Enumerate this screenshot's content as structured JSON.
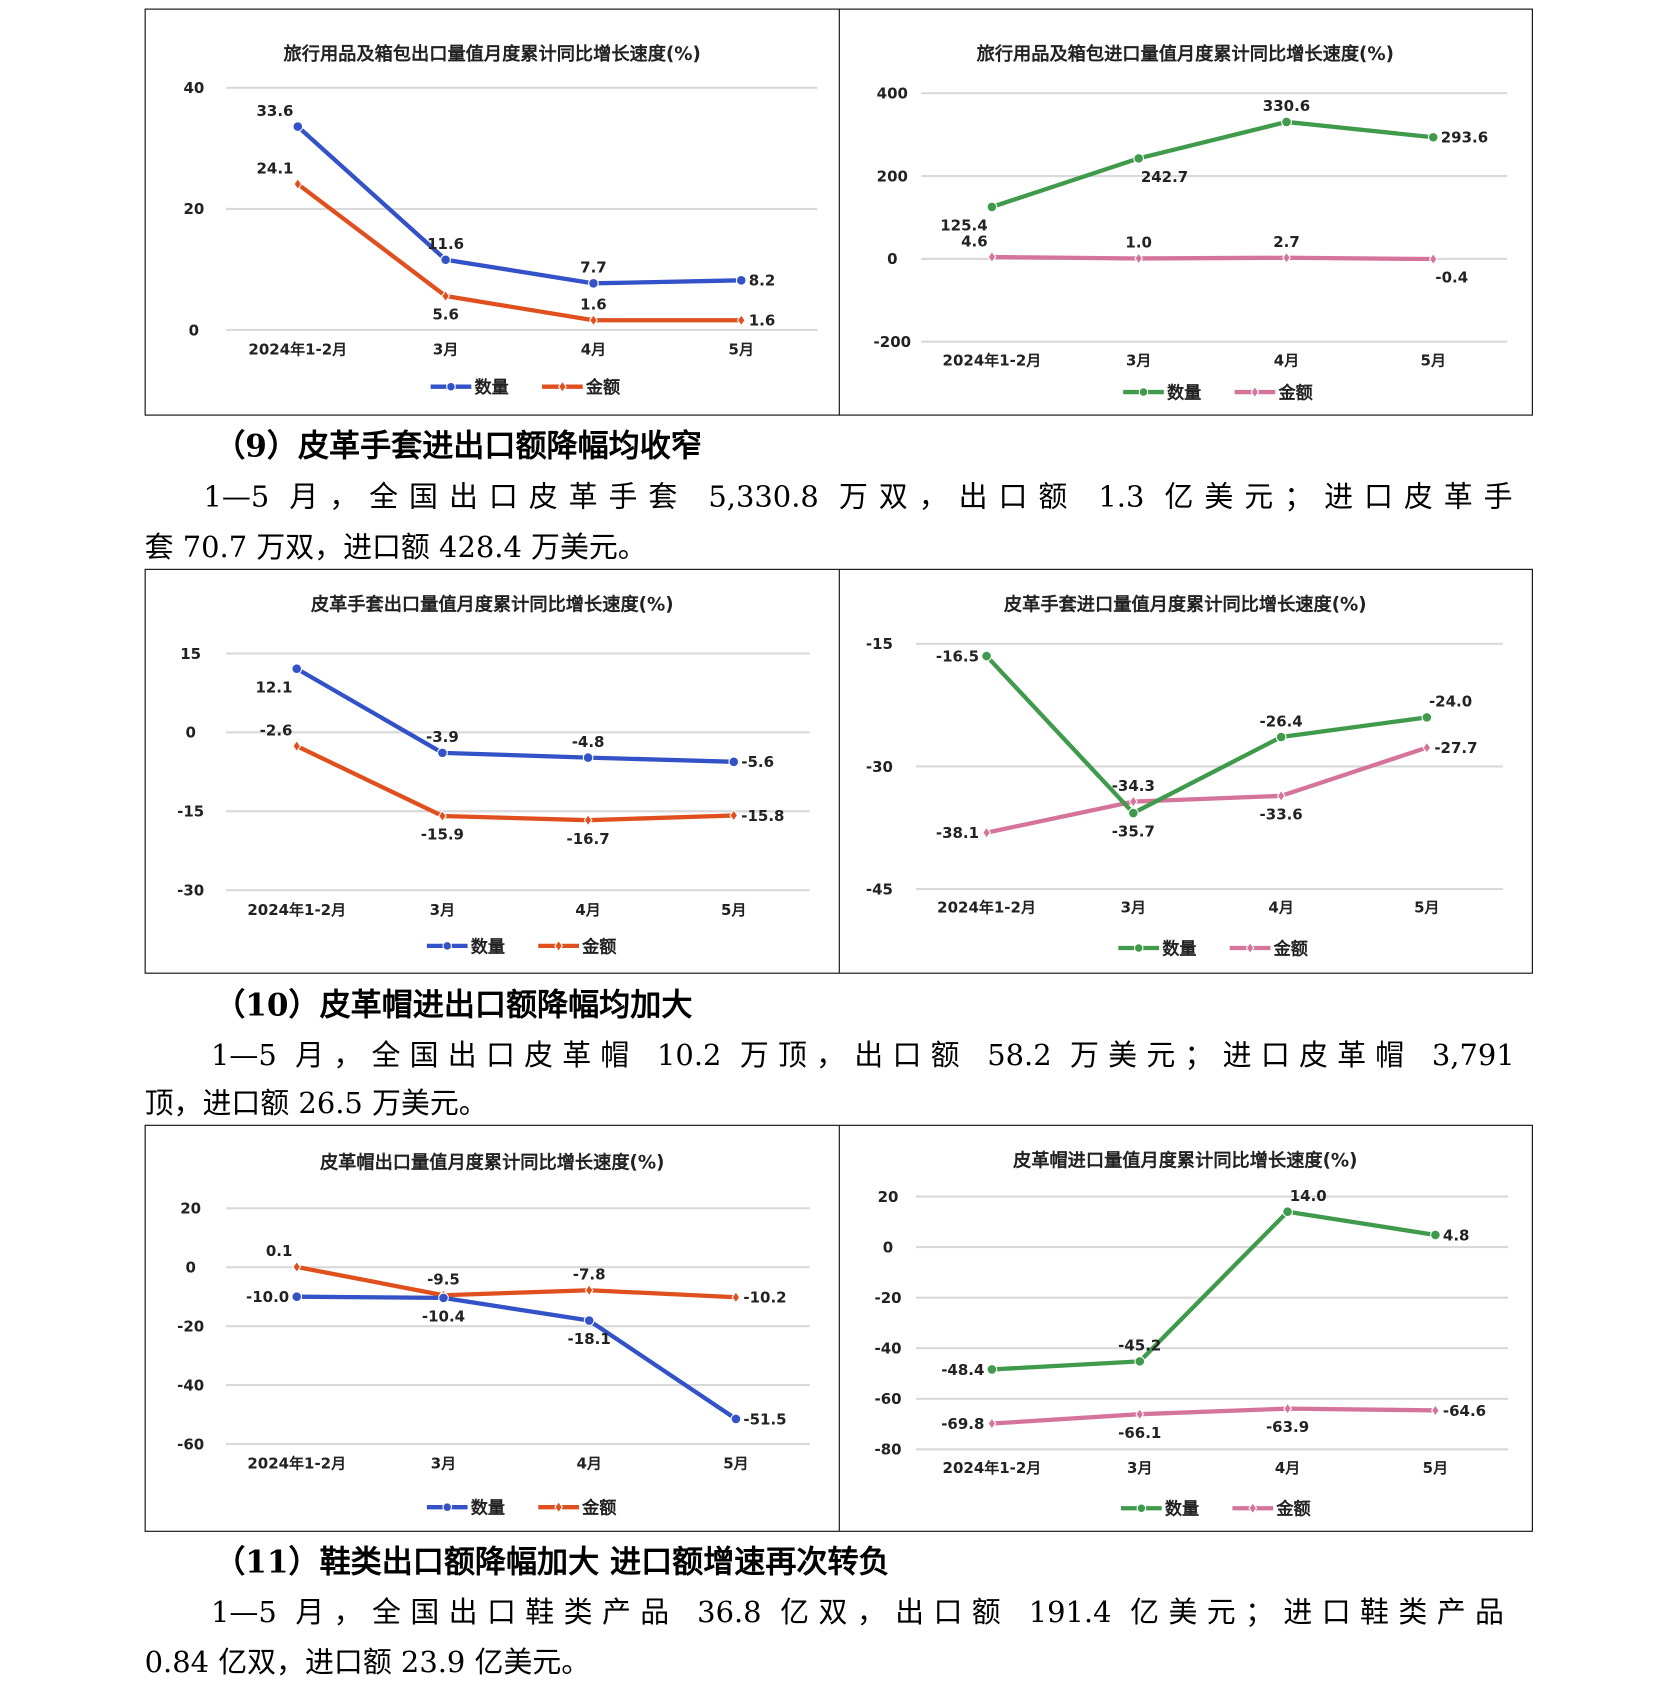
{
  "sections": [
    {
      "heading": "（9）皮革手套进出口额降幅均收窄",
      "lines": [
        "1—5 月，全国出口皮革手套 5,330.8 万双，出口额 1.3 亿美元；进口皮革手",
        "套 70.7 万双，进口额 428.4 万美元。"
      ]
    },
    {
      "heading": "（10）皮革帽进出口额降幅均加大",
      "lines": [
        "1—5 月，全国出口皮革帽 10.2 万顶，出口额 58.2 万美元；进口皮革帽 3,791",
        "顶，进口额 26.5 万美元。"
      ]
    },
    {
      "heading": "（11）鞋类出口额降幅加大 进口额增速再次转负",
      "lines": [
        "1—5 月，全国出口鞋类产品 36.8 亿双，出口额 191.4 亿美元；进口鞋类产品",
        "0.84 亿双，进口额 23.9 亿美元。"
      ]
    }
  ],
  "colors": {
    "qty_export": "#3352c8",
    "amt_export": "#e0501e",
    "qty_import": "#3f9a4c",
    "amt_import": "#d4749a",
    "grid": "#d9d9d9"
  },
  "chart_data": [
    {
      "type": "line",
      "title": "旅行用品及箱包出口量值月度累计同比增长速度(%)",
      "categories": [
        "2024年1-2月",
        "3月",
        "4月",
        "5月"
      ],
      "ylim": [
        0,
        40
      ],
      "yticks": [
        "0",
        "20",
        "40"
      ],
      "legend": "bottom",
      "series": [
        {
          "name": "数量",
          "values": [
            33.6,
            11.6,
            7.7,
            8.2
          ],
          "labels": [
            "33.6",
            "11.6",
            "7.7",
            "8.2"
          ]
        },
        {
          "name": "金额",
          "values": [
            24.1,
            5.6,
            1.6,
            1.6
          ],
          "labels": [
            "24.1",
            "5.6",
            "1.6",
            "1.6"
          ]
        }
      ]
    },
    {
      "type": "line",
      "title": "旅行用品及箱包进口量值月度累计同比增长速度(%)",
      "categories": [
        "2024年1-2月",
        "3月",
        "4月",
        "5月"
      ],
      "ylim": [
        -200,
        400
      ],
      "yticks": [
        "-200",
        "0",
        "200",
        "400"
      ],
      "legend": "bottom",
      "series": [
        {
          "name": "数量",
          "values": [
            125.4,
            242.7,
            330.6,
            293.6
          ],
          "labels": [
            "125.4",
            "242.7",
            "330.6",
            "293.6"
          ]
        },
        {
          "name": "金额",
          "values": [
            4.6,
            1.0,
            2.7,
            -0.4
          ],
          "labels": [
            "4.6",
            "1.0",
            "2.7",
            "-0.4"
          ]
        }
      ]
    },
    {
      "type": "line",
      "title": "皮革手套出口量值月度累计同比增长速度(%)",
      "categories": [
        "2024年1-2月",
        "3月",
        "4月",
        "5月"
      ],
      "ylim": [
        -30,
        15
      ],
      "yticks": [
        "-30",
        "-15",
        "0",
        "15"
      ],
      "legend": "bottom",
      "series": [
        {
          "name": "数量",
          "values": [
            12.1,
            -3.9,
            -4.8,
            -5.6
          ],
          "labels": [
            "12.1",
            "-3.9",
            "-4.8",
            "-5.6"
          ]
        },
        {
          "name": "金额",
          "values": [
            -2.6,
            -15.9,
            -16.7,
            -15.8
          ],
          "labels": [
            "-2.6",
            "-15.9",
            "-16.7",
            "-15.8"
          ]
        }
      ]
    },
    {
      "type": "line",
      "title": "皮革手套进口量值月度累计同比增长速度(%)",
      "categories": [
        "2024年1-2月",
        "3月",
        "4月",
        "5月"
      ],
      "ylim": [
        -45,
        -15
      ],
      "yticks": [
        "-45",
        "-30",
        "-15"
      ],
      "legend": "bottom",
      "series": [
        {
          "name": "数量",
          "values": [
            -16.5,
            -35.7,
            -26.4,
            -24.0
          ],
          "labels": [
            "-16.5",
            "-35.7",
            "-26.4",
            "-24.0"
          ]
        },
        {
          "name": "金额",
          "values": [
            -38.1,
            -34.3,
            -33.6,
            -27.7
          ],
          "labels": [
            "-38.1",
            "-34.3",
            "-33.6",
            "-27.7"
          ]
        }
      ]
    },
    {
      "type": "line",
      "title": "皮革帽出口量值月度累计同比增长速度(%)",
      "categories": [
        "2024年1-2月",
        "3月",
        "4月",
        "5月"
      ],
      "ylim": [
        -60,
        20
      ],
      "yticks": [
        "-60",
        "-40",
        "-20",
        "0",
        "20"
      ],
      "legend": "bottom",
      "series": [
        {
          "name": "数量",
          "values": [
            -10.0,
            -10.4,
            -18.1,
            -51.5
          ],
          "labels": [
            "-10.0",
            "-10.4",
            "-18.1",
            "-51.5"
          ]
        },
        {
          "name": "金额",
          "values": [
            0.1,
            -9.5,
            -7.8,
            -10.2
          ],
          "labels": [
            "0.1",
            "-9.5",
            "-7.8",
            "-10.2"
          ]
        }
      ]
    },
    {
      "type": "line",
      "title": "皮革帽进口量值月度累计同比增长速度(%)",
      "categories": [
        "2024年1-2月",
        "3月",
        "4月",
        "5月"
      ],
      "ylim": [
        -80,
        20
      ],
      "yticks": [
        "-80",
        "-60",
        "-40",
        "-20",
        "0",
        "20"
      ],
      "legend": "bottom",
      "series": [
        {
          "name": "数量",
          "values": [
            -48.4,
            -45.2,
            14.0,
            4.8
          ],
          "labels": [
            "-48.4",
            "-45.2",
            "14.0",
            "4.8"
          ]
        },
        {
          "name": "金额",
          "values": [
            -69.8,
            -66.1,
            -63.9,
            -64.6
          ],
          "labels": [
            "-69.8",
            "-66.1",
            "-63.9",
            "-64.6"
          ]
        }
      ]
    }
  ]
}
